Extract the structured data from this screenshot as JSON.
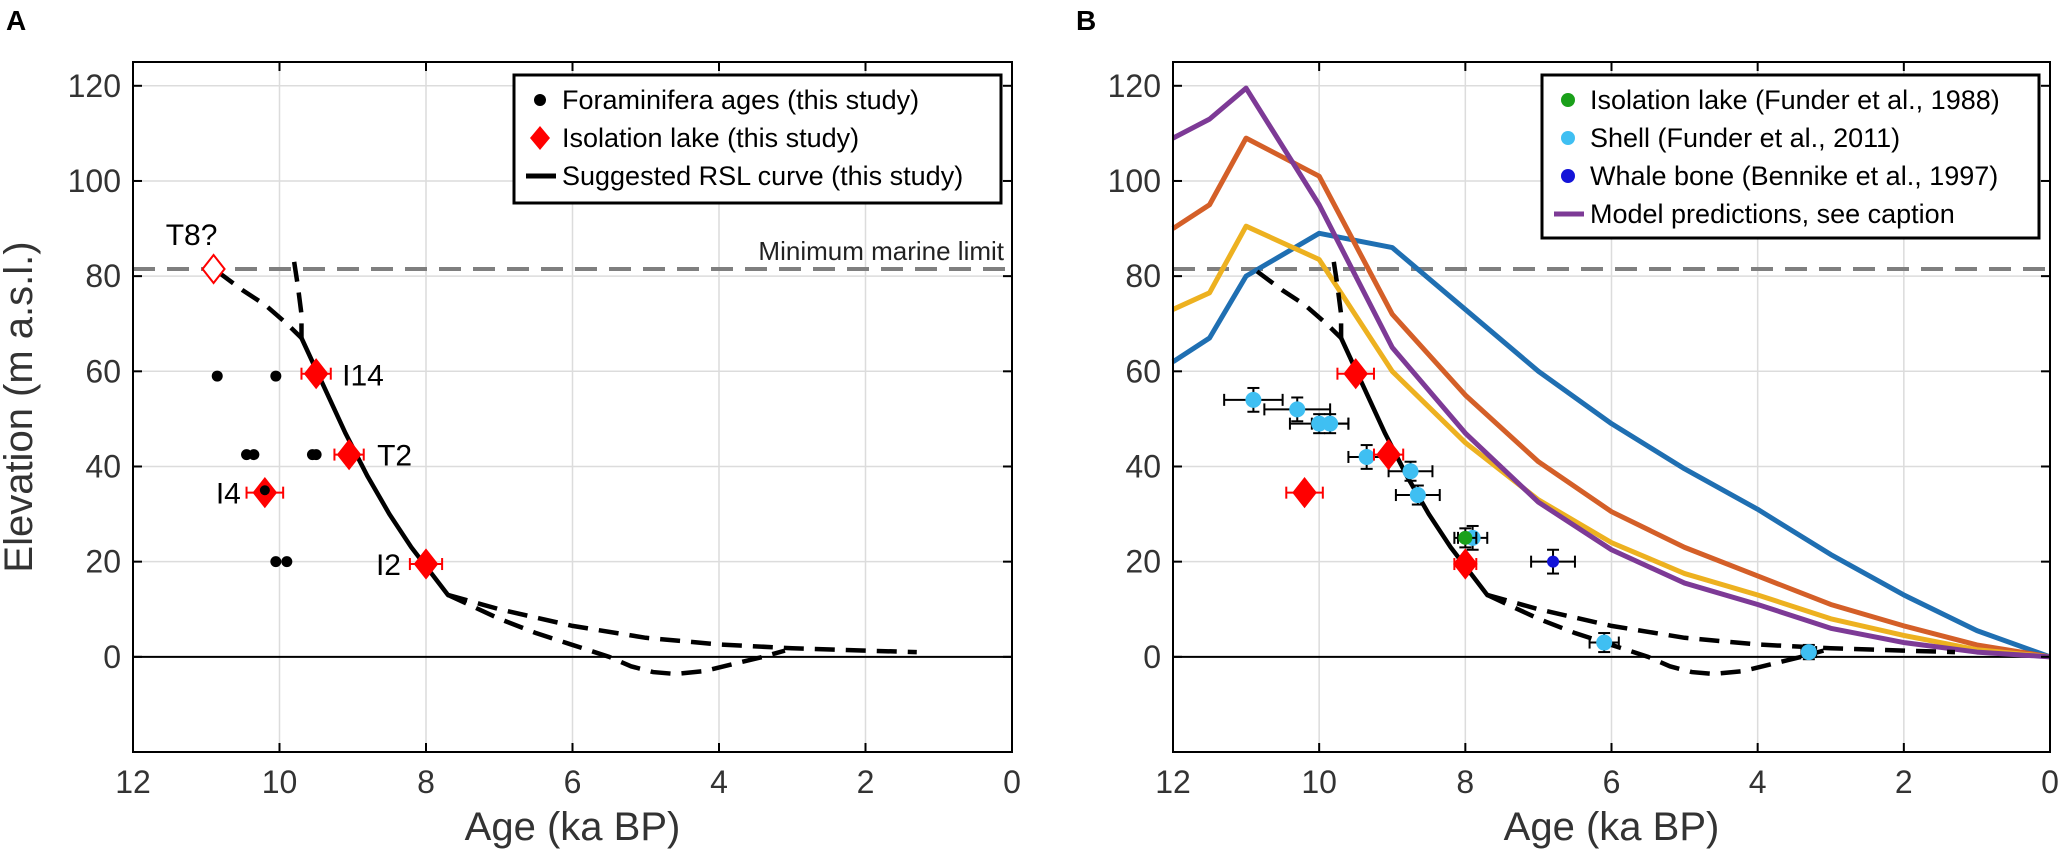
{
  "chart_data": [
    {
      "panel": "A",
      "type": "scatter",
      "xlabel": "Age (ka BP)",
      "ylabel": "Elevation (m a.s.l.)",
      "xlim": [
        12,
        0
      ],
      "ylim": [
        -20,
        125
      ],
      "xticks": [
        12,
        10,
        8,
        6,
        4,
        2,
        0
      ],
      "yticks": [
        0,
        20,
        40,
        60,
        80,
        100,
        120
      ],
      "xtick_labels": [
        "12",
        "10",
        "8",
        "6",
        "4",
        "2",
        "0"
      ],
      "ytick_labels": [
        "0",
        "20",
        "40",
        "60",
        "80",
        "100",
        "120"
      ],
      "grid": true,
      "legend_position": "top-right",
      "marine_limit": {
        "value": 81.5,
        "label": "Minimum marine limit"
      },
      "legend": [
        {
          "label": "Foraminifera ages (this study)",
          "symbol": "dot",
          "color": "#000000"
        },
        {
          "label": "Isolation lake (this study)",
          "symbol": "diamond",
          "color": "#ff0000"
        },
        {
          "label": "Suggested RSL curve (this study)",
          "symbol": "dashed-line",
          "color": "#000000"
        }
      ],
      "foraminifera": [
        {
          "x": 10.85,
          "y": 59
        },
        {
          "x": 10.05,
          "y": 59
        },
        {
          "x": 10.45,
          "y": 42.5
        },
        {
          "x": 10.35,
          "y": 42.5
        },
        {
          "x": 9.55,
          "y": 42.5
        },
        {
          "x": 9.5,
          "y": 42.5
        },
        {
          "x": 10.2,
          "y": 35
        },
        {
          "x": 10.05,
          "y": 20
        },
        {
          "x": 9.9,
          "y": 20
        }
      ],
      "isolation_lakes": [
        {
          "name": "T8?",
          "x": 10.9,
          "y": 81.5,
          "xerr": 0,
          "open": true
        },
        {
          "name": "I14",
          "x": 9.5,
          "y": 59.5,
          "xerr": 0.2,
          "open": false
        },
        {
          "name": "T2",
          "x": 9.05,
          "y": 42.5,
          "xerr": 0.2,
          "open": false
        },
        {
          "name": "I4",
          "x": 10.2,
          "y": 34.5,
          "xerr": 0.25,
          "open": false
        },
        {
          "name": "I2",
          "x": 8.0,
          "y": 19.5,
          "xerr": 0.22,
          "open": false
        }
      ],
      "rsl_curve": {
        "solid": {
          "x": [
            9.7,
            9.4,
            9.1,
            8.8,
            8.5,
            8.2,
            7.9,
            7.7
          ],
          "y": [
            67,
            57,
            47,
            38,
            30,
            23,
            17,
            13
          ]
        },
        "dashed": [
          {
            "x": [
              10.85,
              10.5,
              10.2,
              9.9,
              9.7
            ],
            "y": [
              81,
              77,
              74,
              70,
              67
            ]
          },
          {
            "x": [
              9.8,
              9.75,
              9.7,
              9.7
            ],
            "y": [
              83,
              78,
              72,
              67
            ]
          },
          {
            "x": [
              7.7,
              7.0,
              6.5,
              6.0,
              5.5,
              5.2,
              4.9,
              4.6,
              4.2,
              3.8,
              3.4,
              3.1
            ],
            "y": [
              13,
              8,
              5,
              2.5,
              0,
              -2,
              -3.2,
              -3.6,
              -3.0,
              -1.5,
              0,
              1.3
            ]
          },
          {
            "x": [
              7.7,
              7.0,
              6.0,
              5.0,
              4.0,
              3.0,
              2.0,
              1.3
            ],
            "y": [
              13,
              10,
              6.5,
              4,
              2.6,
              1.8,
              1.3,
              1
            ]
          }
        ]
      }
    },
    {
      "panel": "B",
      "type": "line",
      "xlabel": "Age (ka BP)",
      "xlim": [
        12,
        0
      ],
      "ylim": [
        -20,
        125
      ],
      "xticks": [
        12,
        10,
        8,
        6,
        4,
        2,
        0
      ],
      "yticks": [
        0,
        20,
        40,
        60,
        80,
        100,
        120
      ],
      "xtick_labels": [
        "12",
        "10",
        "8",
        "6",
        "4",
        "2",
        "0"
      ],
      "ytick_labels": [
        "0",
        "20",
        "40",
        "60",
        "80",
        "100",
        "120"
      ],
      "grid": true,
      "legend_position": "top-right",
      "marine_limit": {
        "value": 81.5
      },
      "legend": [
        {
          "label": "Isolation lake (Funder et al., 1988)",
          "symbol": "dot",
          "color": "#1aa01a"
        },
        {
          "label": "Shell (Funder et al., 2011)",
          "symbol": "dot",
          "color": "#3fbff2"
        },
        {
          "label": "Whale bone (Bennike et al., 1997)",
          "symbol": "dot",
          "color": "#1414d8"
        },
        {
          "label": "Model predictions, see caption",
          "symbol": "line",
          "color": "#7d3a96"
        }
      ],
      "series": [
        {
          "name": "blue model",
          "color": "#1f6fb2",
          "x": [
            12,
            11.5,
            11,
            10,
            9,
            8,
            7,
            6,
            5,
            4,
            3,
            2,
            1,
            0
          ],
          "y": [
            62,
            67,
            80,
            89,
            86,
            73,
            60,
            49,
            39.5,
            31,
            21.5,
            13,
            5.5,
            0
          ]
        },
        {
          "name": "orange model",
          "color": "#d45f28",
          "x": [
            12,
            11.5,
            11,
            10,
            9,
            8,
            7,
            6,
            5,
            4,
            3,
            2,
            1,
            0
          ],
          "y": [
            90,
            95,
            109,
            101,
            72,
            55,
            41,
            30.5,
            23,
            17,
            11,
            6.5,
            2.5,
            0
          ]
        },
        {
          "name": "yellow model",
          "color": "#edb120",
          "x": [
            12,
            11.5,
            11,
            10,
            9,
            8,
            7,
            6,
            5,
            4,
            3,
            2,
            1,
            0
          ],
          "y": [
            73,
            76.5,
            90.5,
            83.5,
            60,
            45,
            33,
            24,
            17.5,
            13,
            8,
            4.5,
            1.5,
            0
          ]
        },
        {
          "name": "purple model",
          "color": "#7d3a96",
          "x": [
            12,
            11.5,
            11,
            10,
            9,
            8,
            7,
            6,
            5,
            4,
            3,
            2,
            1,
            0
          ],
          "y": [
            109,
            113,
            119.5,
            95,
            65,
            47,
            32.5,
            22.5,
            15.5,
            11,
            6,
            3,
            1,
            0
          ]
        }
      ],
      "isolation_lake_funder_1988": [
        {
          "x": 8.0,
          "y": 25,
          "xerr": 0.15,
          "yerr": 2
        }
      ],
      "shells_funder_2011": [
        {
          "x": 10.9,
          "y": 54,
          "xerr": 0.4,
          "yerr": 2.5
        },
        {
          "x": 10.3,
          "y": 52,
          "xerr": 0.45,
          "yerr": 2.5
        },
        {
          "x": 10.0,
          "y": 49,
          "xerr": 0.4,
          "yerr": 2
        },
        {
          "x": 9.85,
          "y": 49,
          "xerr": 0.25,
          "yerr": 2
        },
        {
          "x": 9.35,
          "y": 42,
          "xerr": 0.25,
          "yerr": 2.5
        },
        {
          "x": 8.75,
          "y": 39,
          "xerr": 0.3,
          "yerr": 2
        },
        {
          "x": 8.65,
          "y": 34,
          "xerr": 0.3,
          "yerr": 2
        },
        {
          "x": 7.9,
          "y": 25,
          "xerr": 0.2,
          "yerr": 2.5
        },
        {
          "x": 6.1,
          "y": 3,
          "xerr": 0.2,
          "yerr": 2
        },
        {
          "x": 3.3,
          "y": 1,
          "xerr": 0.1,
          "yerr": 1.5
        }
      ],
      "whale_bone_bennike_1997": [
        {
          "x": 6.8,
          "y": 20,
          "xerr": 0.3,
          "yerr": 2.5
        }
      ],
      "isolation_lakes_this_study": [
        {
          "x": 9.5,
          "y": 59.5,
          "xerr": 0.25
        },
        {
          "x": 9.05,
          "y": 42.5,
          "xerr": 0.2
        },
        {
          "x": 10.2,
          "y": 34.5,
          "xerr": 0.25
        },
        {
          "x": 8.0,
          "y": 19.5,
          "xerr": 0.15
        }
      ],
      "rsl_curve": {
        "solid": {
          "x": [
            9.7,
            9.4,
            9.1,
            8.8,
            8.5,
            8.2,
            7.9,
            7.7
          ],
          "y": [
            67,
            57,
            47,
            38,
            30,
            23,
            17,
            13
          ]
        },
        "dashed": [
          {
            "x": [
              10.85,
              10.5,
              10.2,
              9.9,
              9.7
            ],
            "y": [
              81,
              77,
              74,
              70,
              67
            ]
          },
          {
            "x": [
              9.8,
              9.75,
              9.7,
              9.7
            ],
            "y": [
              83,
              78,
              72,
              67
            ]
          },
          {
            "x": [
              7.7,
              7.0,
              6.5,
              6.0,
              5.5,
              5.2,
              4.9,
              4.6,
              4.2,
              3.8,
              3.4,
              3.1
            ],
            "y": [
              13,
              8,
              5,
              2.5,
              0,
              -2,
              -3.2,
              -3.6,
              -3.0,
              -1.5,
              0,
              1.3
            ]
          },
          {
            "x": [
              7.7,
              7.0,
              6.0,
              5.0,
              4.0,
              3.0,
              2.0,
              1.3
            ],
            "y": [
              13,
              10,
              6.5,
              4,
              2.6,
              1.8,
              1.3,
              1
            ]
          }
        ]
      }
    }
  ],
  "colors": {
    "isolation_red": "#ff0000",
    "grid": "#dcdcdc",
    "marine_limit": "#7f7f7f"
  }
}
